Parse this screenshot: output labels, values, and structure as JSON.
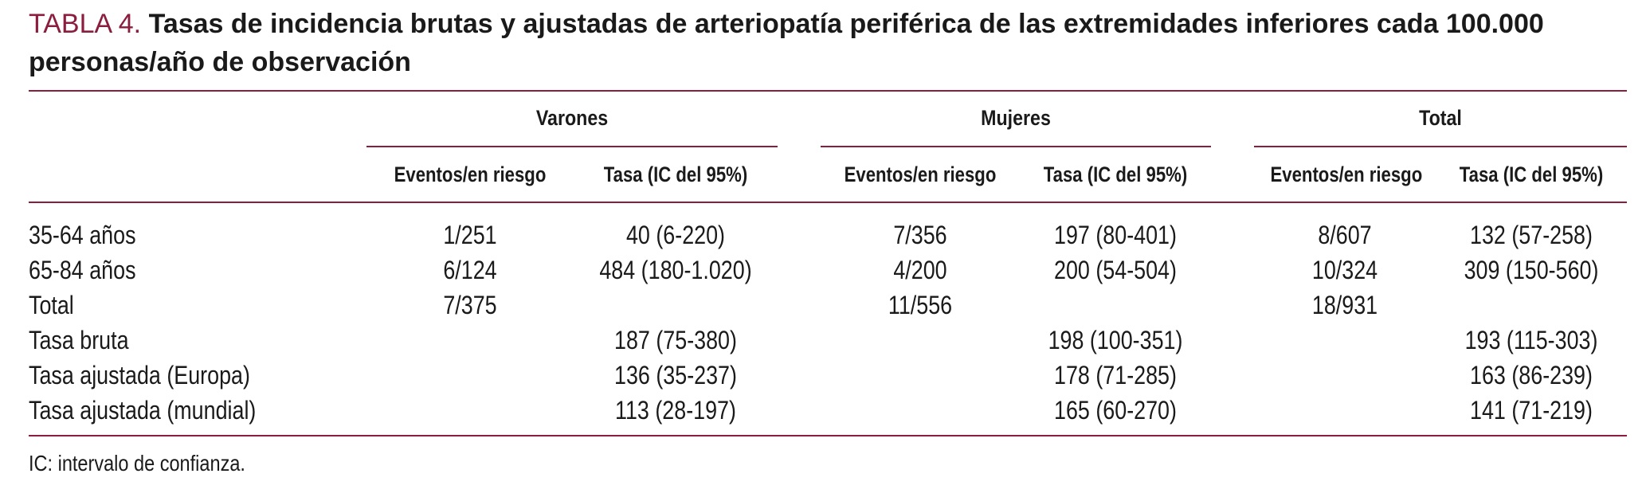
{
  "title": {
    "label": "TABLA 4.",
    "text": "Tasas de incidencia brutas y ajustadas de arteriopatía periférica de las extremidades inferiores cada 100.000 personas/año de observación"
  },
  "groups": [
    "Varones",
    "Mujeres",
    "Total"
  ],
  "subheaders": [
    "Eventos/en riesgo",
    "Tasa (IC del 95%)",
    "Eventos/en riesgo",
    "Tasa (IC del 95%)",
    "Eventos/en riesgo",
    "Tasa (IC del 95%)"
  ],
  "rows": [
    {
      "label": "35-64 años",
      "cells": [
        "1/251",
        "40 (6-220)",
        "7/356",
        "197 (80-401)",
        "8/607",
        "132 (57-258)"
      ]
    },
    {
      "label": "65-84 años",
      "cells": [
        "6/124",
        "484 (180-1.020)",
        "4/200",
        "200 (54-504)",
        "10/324",
        "309 (150-560)"
      ]
    },
    {
      "label": "Total",
      "cells": [
        "7/375",
        "",
        "11/556",
        "",
        "18/931",
        ""
      ]
    },
    {
      "label": "Tasa bruta",
      "cells": [
        "",
        "187 (75-380)",
        "",
        "198 (100-351)",
        "",
        "193 (115-303)"
      ]
    },
    {
      "label": "Tasa ajustada (Europa)",
      "cells": [
        "",
        "136 (35-237)",
        "",
        "178 (71-285)",
        "",
        "163 (86-239)"
      ]
    },
    {
      "label": "Tasa ajustada (mundial)",
      "cells": [
        "",
        "113 (28-197)",
        "",
        "165 (60-270)",
        "",
        "141 (71-219)"
      ]
    }
  ],
  "footnote": "IC: intervalo de confianza."
}
